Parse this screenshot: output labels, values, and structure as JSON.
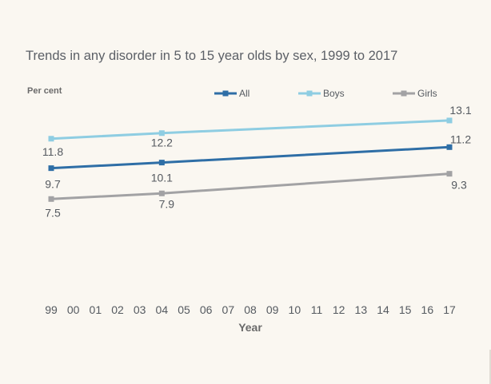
{
  "chart_data": {
    "type": "line",
    "title": "Trends in any disorder in 5 to 15 year olds by sex, 1999 to 2017",
    "ylabel": "Per cent",
    "xlabel": "Year",
    "x_categories": [
      "99",
      "00",
      "01",
      "02",
      "03",
      "04",
      "05",
      "06",
      "07",
      "08",
      "09",
      "10",
      "11",
      "12",
      "13",
      "14",
      "15",
      "16",
      "17"
    ],
    "ylim": [
      0,
      16
    ],
    "grid": false,
    "legend_position": "top-right",
    "series": [
      {
        "name": "All",
        "color": "#2e6ea6",
        "x": [
          "99",
          "04",
          "17"
        ],
        "values": [
          9.7,
          10.1,
          11.2
        ]
      },
      {
        "name": "Boys",
        "color": "#8ecde2",
        "x": [
          "99",
          "04",
          "17"
        ],
        "values": [
          11.8,
          12.2,
          13.1
        ]
      },
      {
        "name": "Girls",
        "color": "#a2a2a4",
        "x": [
          "99",
          "04",
          "17"
        ],
        "values": [
          7.5,
          7.9,
          9.3
        ]
      }
    ]
  }
}
